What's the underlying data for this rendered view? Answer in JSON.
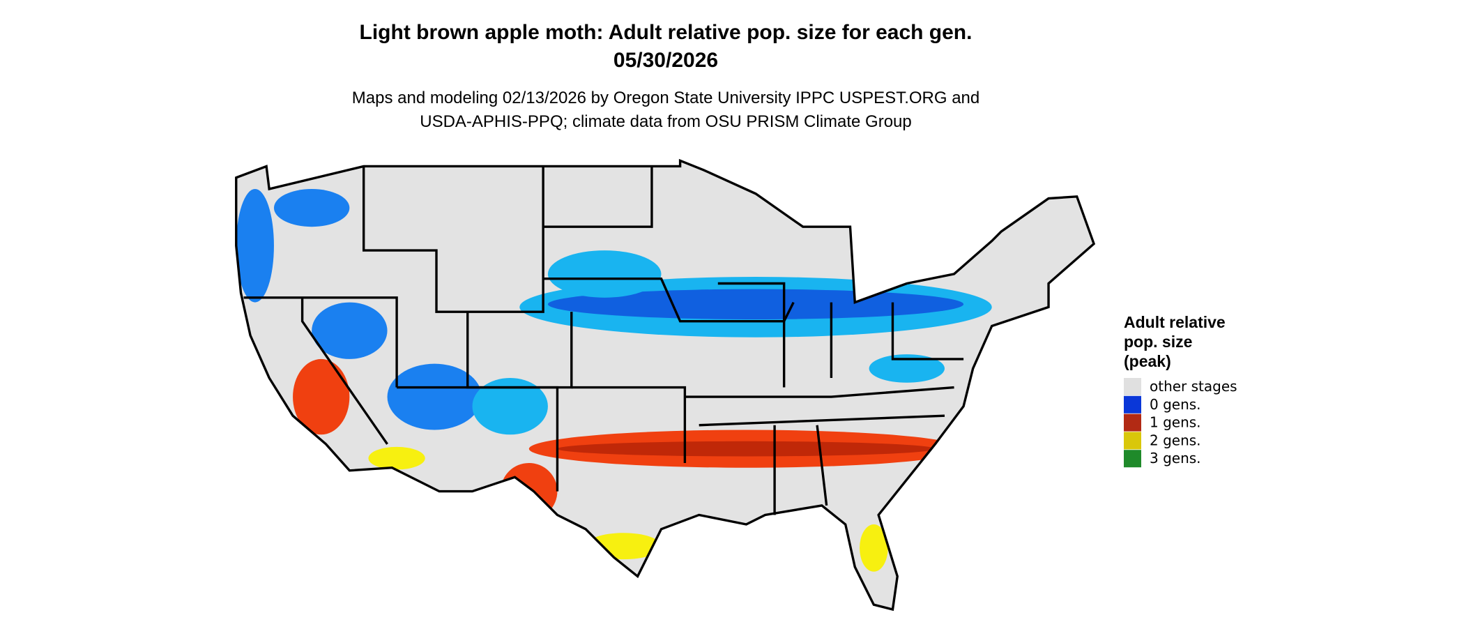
{
  "header": {
    "title_lines": [
      "Light brown apple moth: Adult relative pop. size for each gen.",
      "05/30/2026"
    ],
    "subtitle_lines": [
      "Maps and modeling 02/13/2026 by Oregon State University IPPC USPEST.ORG and",
      "USDA-APHIS-PPQ; climate data from OSU PRISM Climate Group"
    ]
  },
  "legend": {
    "title_lines": [
      "Adult relative",
      "pop. size",
      "(peak)"
    ],
    "items": [
      {
        "label": "other stages",
        "color": "#e0e0e0"
      },
      {
        "label": "0 gens.",
        "color": "#0a37d8"
      },
      {
        "label": "1 gens.",
        "color": "#b22a14"
      },
      {
        "label": "2 gens.",
        "color": "#d9c70a"
      },
      {
        "label": "3 gens.",
        "color": "#1f8a2a"
      }
    ]
  }
}
